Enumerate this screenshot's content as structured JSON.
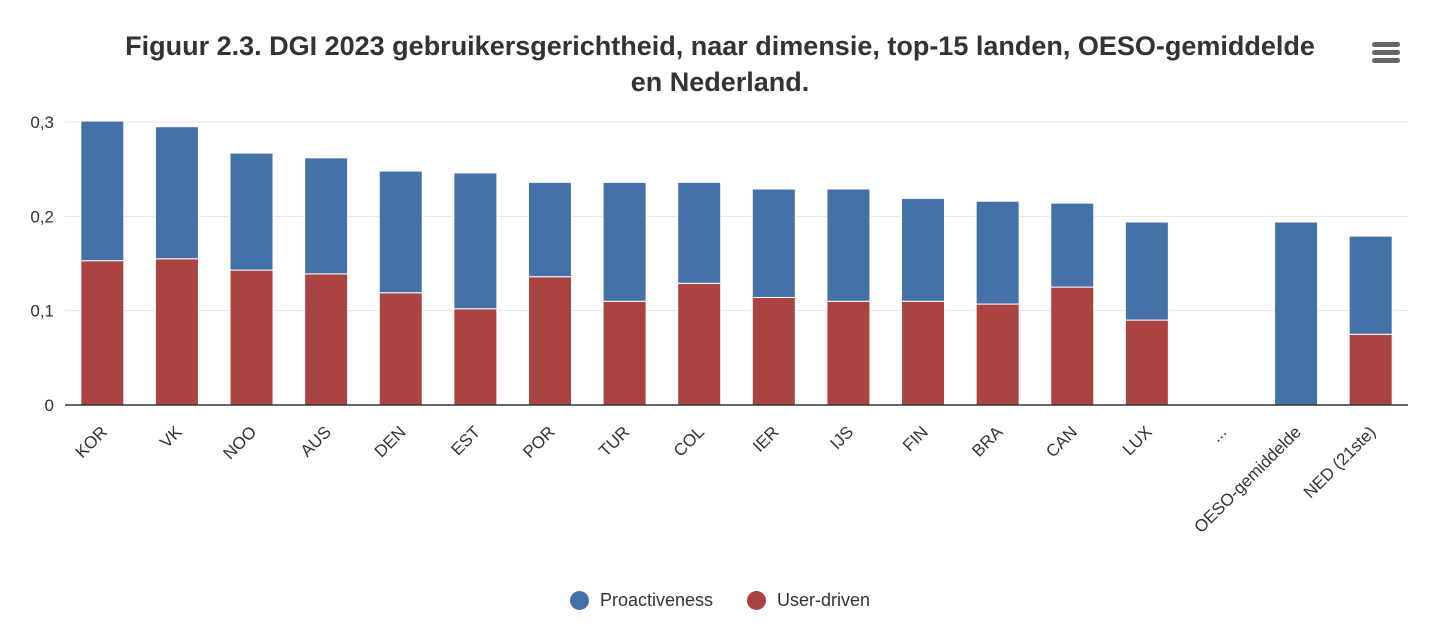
{
  "chart_data": {
    "type": "bar",
    "stacked": true,
    "title_lines": [
      "Figuur 2.3. DGI 2023 gebruikersgerichtheid, naar dimensie, top-15 landen, OESO-gemiddelde",
      "en Nederland."
    ],
    "categories": [
      "KOR",
      "VK",
      "NOO",
      "AUS",
      "DEN",
      "EST",
      "POR",
      "TUR",
      "COL",
      "IER",
      "IJS",
      "FIN",
      "BRA",
      "CAN",
      "LUX",
      "...",
      "OESO-gemiddelde",
      "NED (21ste)"
    ],
    "series": [
      {
        "name": "User-driven",
        "color": "#a94442",
        "values": [
          0.153,
          0.155,
          0.143,
          0.139,
          0.119,
          0.102,
          0.136,
          0.11,
          0.129,
          0.114,
          0.11,
          0.11,
          0.107,
          0.125,
          0.09,
          null,
          0.0,
          0.075
        ]
      },
      {
        "name": "Proactiveness",
        "color": "#4472a8",
        "values": [
          0.148,
          0.14,
          0.124,
          0.123,
          0.129,
          0.144,
          0.1,
          0.126,
          0.107,
          0.115,
          0.119,
          0.109,
          0.109,
          0.089,
          0.104,
          null,
          0.194,
          0.104
        ]
      }
    ],
    "ylim": [
      0,
      0.3
    ],
    "yticks": [
      "0",
      "0,1",
      "0,2",
      "0,3"
    ],
    "grid": true,
    "legend_position": "bottom",
    "legend": [
      {
        "name": "Proactiveness",
        "color": "#4472a8"
      },
      {
        "name": "User-driven",
        "color": "#a94442"
      }
    ]
  },
  "menu_icon": "hamburger-menu-icon"
}
